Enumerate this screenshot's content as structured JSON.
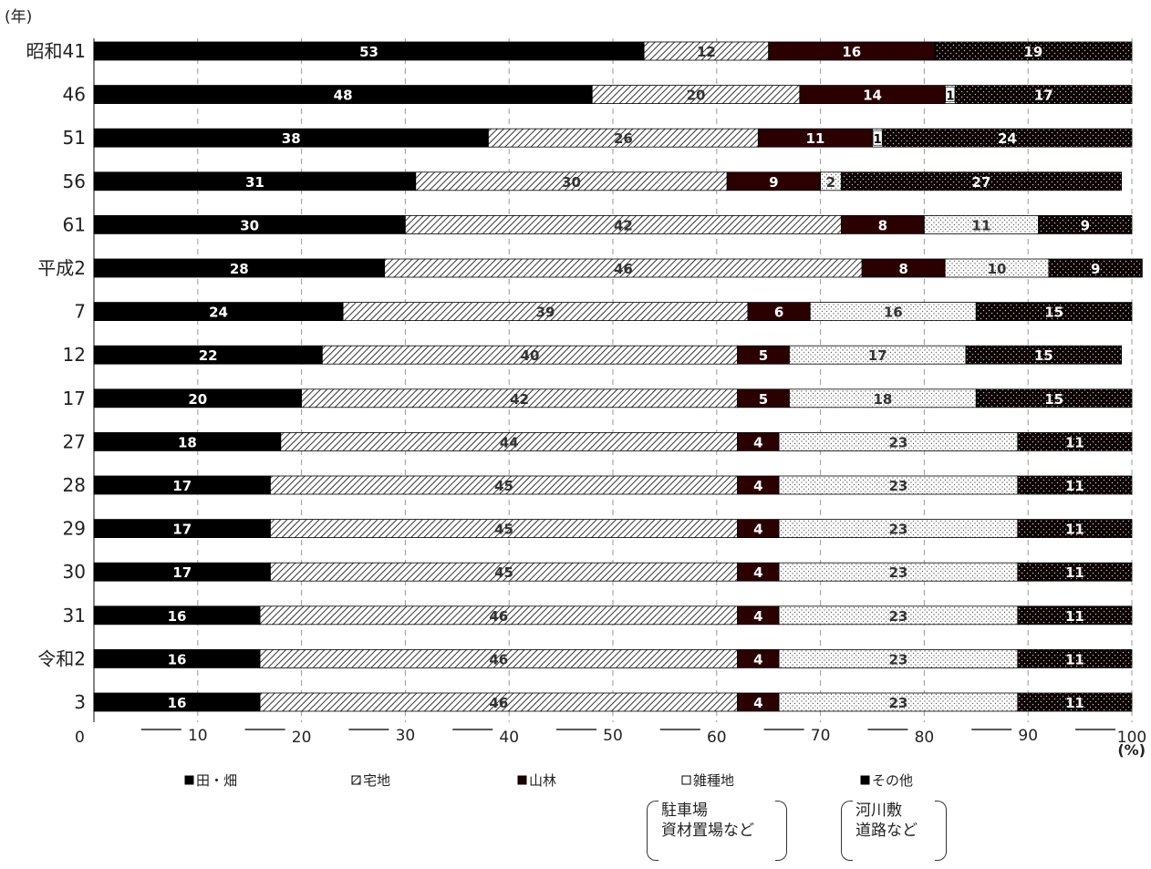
{
  "chart_data": {
    "type": "bar",
    "orientation": "horizontal",
    "stacked": true,
    "y_unit_label": "(年)",
    "x_unit_label": "(%)",
    "xlim": [
      0,
      100
    ],
    "x_ticks": [
      "0",
      "10",
      "20",
      "30",
      "40",
      "50",
      "60",
      "70",
      "80",
      "90",
      "100"
    ],
    "categories": [
      "昭和41",
      "46",
      "51",
      "56",
      "61",
      "平成2",
      "7",
      "12",
      "17",
      "27",
      "28",
      "29",
      "30",
      "31",
      "令和2",
      "3"
    ],
    "series": [
      {
        "name": "田・畑",
        "color": "#000000",
        "pattern": "solid",
        "values": [
          53,
          48,
          38,
          31,
          30,
          28,
          24,
          22,
          20,
          18,
          17,
          17,
          17,
          16,
          16,
          16
        ]
      },
      {
        "name": "宅地",
        "color": "#ffffff",
        "pattern": "hatch",
        "values": [
          12,
          20,
          26,
          30,
          42,
          46,
          39,
          40,
          42,
          44,
          45,
          45,
          45,
          46,
          46,
          46
        ]
      },
      {
        "name": "山林",
        "color": "#2a0000",
        "pattern": "solid-dark",
        "values": [
          16,
          14,
          11,
          9,
          8,
          8,
          6,
          5,
          5,
          4,
          4,
          4,
          4,
          4,
          4,
          4
        ]
      },
      {
        "name": "雑種地",
        "color": "#ffffff",
        "pattern": "light-dots",
        "values": [
          0,
          1,
          1,
          2,
          11,
          10,
          16,
          17,
          18,
          23,
          23,
          23,
          23,
          23,
          23,
          23
        ]
      },
      {
        "name": "その他",
        "color": "#000000",
        "pattern": "dark-dots",
        "values": [
          19,
          17,
          24,
          27,
          9,
          9,
          15,
          15,
          15,
          11,
          11,
          11,
          11,
          11,
          11,
          11
        ]
      }
    ],
    "legend_position": "bottom",
    "grid": "vertical-dashed",
    "annotations": [
      {
        "for": "雑種地",
        "lines": [
          "駐車場",
          "資材置場など"
        ]
      },
      {
        "for": "その他",
        "lines": [
          "河川敷",
          "道路など"
        ]
      }
    ]
  }
}
